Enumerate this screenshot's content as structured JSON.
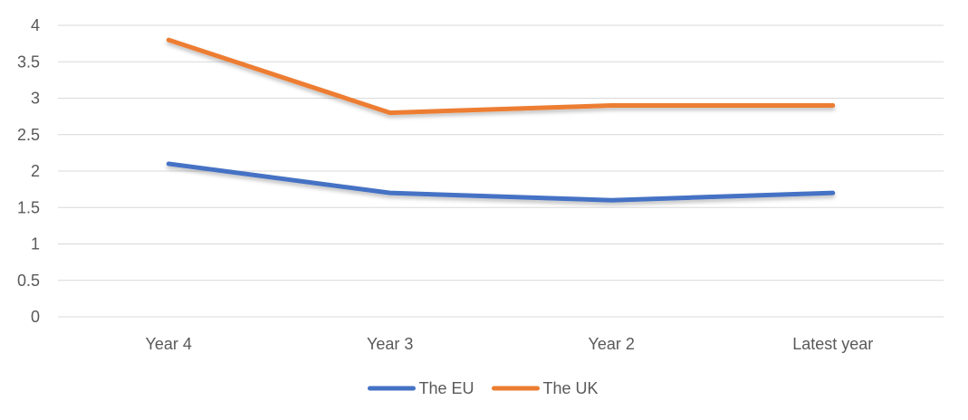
{
  "chart_data": {
    "type": "line",
    "title": "",
    "xlabel": "",
    "ylabel": "",
    "categories": [
      "Year 4",
      "Year 3",
      "Year 2",
      "Latest year"
    ],
    "y_ticks": [
      "0",
      "0.5",
      "1",
      "1.5",
      "2",
      "2.5",
      "3",
      "3.5",
      "4"
    ],
    "ylim": [
      0,
      4
    ],
    "grid": true,
    "legend_position": "bottom",
    "series": [
      {
        "name": "The EU",
        "color": "#4472c4",
        "values": [
          2.1,
          1.7,
          1.6,
          1.7
        ]
      },
      {
        "name": "The UK",
        "color": "#ed7d31",
        "values": [
          3.8,
          2.8,
          2.9,
          2.9
        ]
      }
    ]
  }
}
